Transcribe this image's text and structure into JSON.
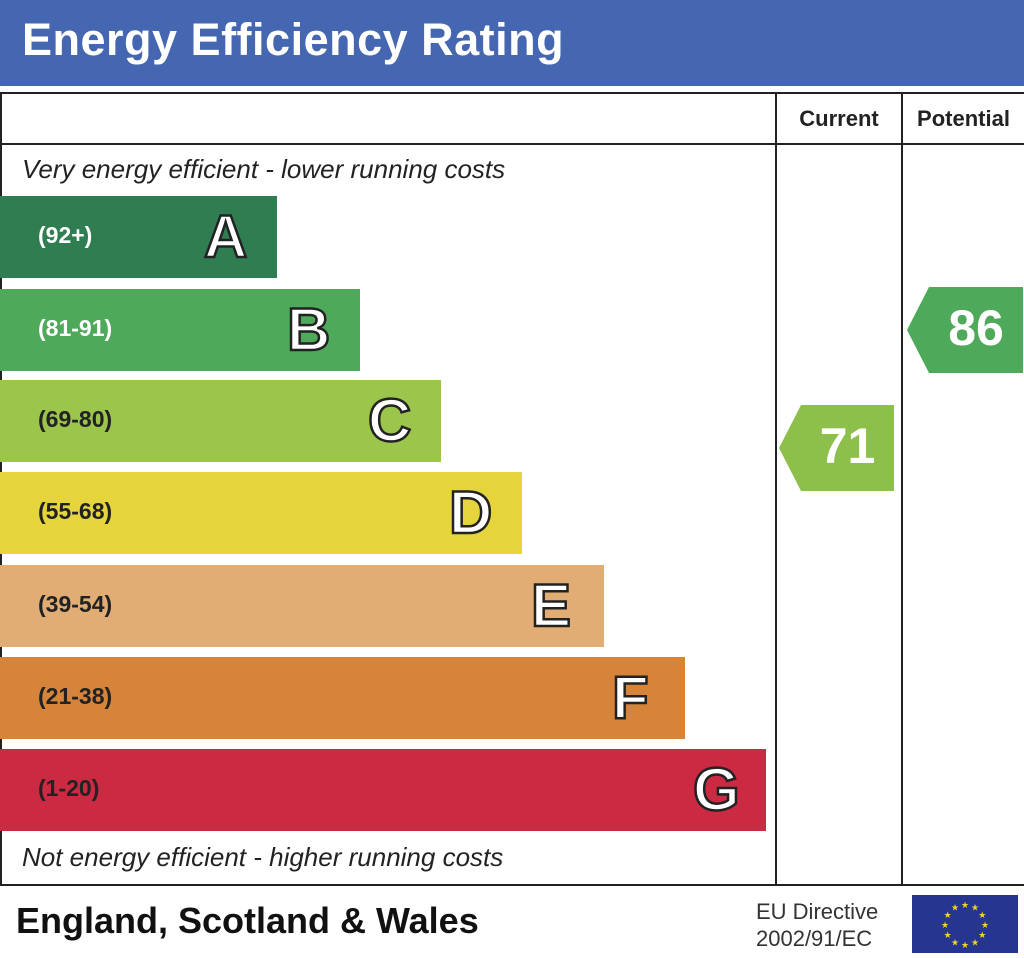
{
  "header": {
    "title": "Energy Efficiency Rating"
  },
  "columns": {
    "current": "Current",
    "potential": "Potential"
  },
  "notes": {
    "top": "Very energy efficient - lower running costs",
    "bottom": "Not energy efficient - higher running costs"
  },
  "footer": {
    "region": "England, Scotland & Wales",
    "directive_line1": "EU Directive",
    "directive_line2": "2002/91/EC"
  },
  "chart_data": {
    "type": "bar",
    "title": "Energy Efficiency Rating",
    "bands": [
      {
        "letter": "A",
        "range": "(92+)",
        "color": "#2f7d50"
      },
      {
        "letter": "B",
        "range": "(81-91)",
        "color": "#4fa95b"
      },
      {
        "letter": "C",
        "range": "(69-80)",
        "color": "#9bc54b"
      },
      {
        "letter": "D",
        "range": "(55-68)",
        "color": "#e6d43c"
      },
      {
        "letter": "E",
        "range": "(39-54)",
        "color": "#e2ad75"
      },
      {
        "letter": "F",
        "range": "(21-38)",
        "color": "#d5843a"
      },
      {
        "letter": "G",
        "range": "(1-20)",
        "color": "#cc2943"
      }
    ],
    "current": {
      "value": "71",
      "band": "C",
      "color": "#8cc04a"
    },
    "potential": {
      "value": "86",
      "band": "B",
      "color": "#4fa95b"
    }
  }
}
